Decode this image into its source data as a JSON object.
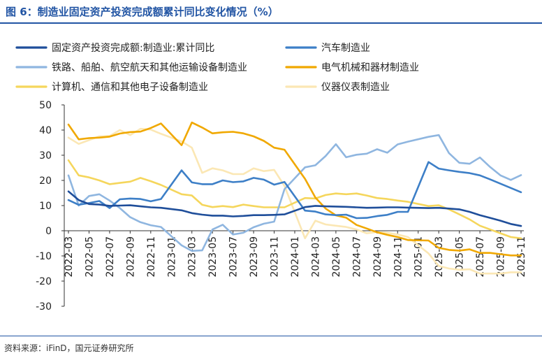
{
  "figure_title": "图 6：制造业固定资产投资完成额累计同比变化情况（%）",
  "source": "资料来源：iFinD，国元证券研究所",
  "chart_data": {
    "type": "line",
    "x": [
      "2022-03",
      "2022-04",
      "2022-05",
      "2022-06",
      "2022-07",
      "2022-08",
      "2022-09",
      "2022-10",
      "2022-11",
      "2022-12",
      "2023-01",
      "2023-02",
      "2023-03",
      "2023-04",
      "2023-05",
      "2023-06",
      "2023-07",
      "2023-08",
      "2023-09",
      "2023-10",
      "2023-11",
      "2023-12",
      "2024-01",
      "2024-02",
      "2024-03",
      "2024-04",
      "2024-05",
      "2024-06",
      "2024-07",
      "2024-08",
      "2024-09",
      "2024-10",
      "2024-11",
      "2024-12",
      "2025-01",
      "2025-02",
      "2025-03",
      "2025-04",
      "2025-05",
      "2025-06",
      "2025-07",
      "2025-08",
      "2025-09",
      "2025-10",
      "2025-11"
    ],
    "x_tick_labels": [
      "2022-03",
      "2022-05",
      "2022-07",
      "2022-09",
      "2022-11",
      "2023-01",
      "2023-03",
      "2023-05",
      "2023-07",
      "2023-09",
      "2023-11",
      "2024-01",
      "2024-03",
      "2024-05",
      "2024-07",
      "2024-09",
      "2024-11",
      "2025-01",
      "2025-03",
      "2025-05",
      "2025-07",
      "2025-09",
      "2025-11"
    ],
    "ylim": [
      -30,
      50
    ],
    "y_ticks": [
      50,
      40,
      30,
      20,
      10,
      0,
      -10,
      -20,
      -30
    ],
    "legend_position": "top",
    "series": [
      {
        "name": "固定资产投资完成额:制造业:累计同比",
        "color": "#1f4e9a",
        "values": [
          15.6,
          12.2,
          10.6,
          10.4,
          9.9,
          10.0,
          10.1,
          9.7,
          9.3,
          9.1,
          null,
          8.1,
          7.0,
          6.4,
          6.0,
          6.0,
          5.7,
          5.9,
          6.2,
          6.2,
          6.3,
          6.5,
          null,
          9.4,
          9.9,
          9.7,
          9.6,
          9.5,
          9.3,
          9.1,
          9.2,
          9.3,
          9.3,
          9.2,
          null,
          9.0,
          9.1,
          8.8,
          8.5,
          7.5,
          6.2,
          5.1,
          4.0,
          2.7,
          1.9
        ]
      },
      {
        "name": "汽车制造业",
        "color": "#3d7fc7",
        "values": [
          12.2,
          10.3,
          11.0,
          11.8,
          9.0,
          12.5,
          12.8,
          12.6,
          11.7,
          12.6,
          null,
          24.0,
          19.2,
          18.5,
          18.5,
          20.0,
          19.3,
          19.6,
          21.0,
          20.3,
          18.3,
          19.4,
          null,
          8.0,
          7.6,
          6.5,
          6.2,
          6.4,
          5.0,
          5.1,
          5.8,
          6.3,
          7.5,
          7.5,
          null,
          27.3,
          24.7,
          24.0,
          23.4,
          22.9,
          22.0,
          20.4,
          18.7,
          17.0,
          15.3
        ]
      },
      {
        "name": "铁路、船舶、航空航天和其他运输设备制造业",
        "color": "#8fb6e0",
        "values": [
          22.0,
          10.0,
          13.8,
          14.5,
          12.0,
          9.0,
          5.4,
          3.4,
          2.2,
          1.5,
          null,
          -5.8,
          -8.0,
          -7.8,
          0.5,
          2.4,
          -1.5,
          -0.8,
          1.4,
          2.8,
          3.6,
          16.5,
          null,
          25.2,
          26.0,
          29.7,
          34.4,
          29.2,
          30.2,
          30.6,
          32.4,
          31.0,
          34.3,
          35.4,
          null,
          37.3,
          38.0,
          30.8,
          27.0,
          26.6,
          29.1,
          25.3,
          22.0,
          20.2,
          22.1
        ]
      },
      {
        "name": "电气机械和器材制造业",
        "color": "#f0a800",
        "values": [
          42.2,
          36.3,
          36.8,
          37.0,
          37.4,
          38.6,
          39.2,
          39.4,
          40.8,
          42.6,
          null,
          34.0,
          43.0,
          41.0,
          38.7,
          39.1,
          39.3,
          38.7,
          37.5,
          35.7,
          33.0,
          32.2,
          null,
          20.6,
          13.2,
          8.8,
          6.1,
          5.2,
          2.3,
          0.9,
          -0.6,
          -1.6,
          -2.5,
          -3.7,
          null,
          -3.9,
          -6.8,
          -7.6,
          -7.9,
          -7.4,
          -8.8,
          -8.8,
          -9.3,
          -9.8,
          -9.8
        ]
      },
      {
        "name": "计算机、通信和其他电子设备制造业",
        "color": "#f5d65c",
        "values": [
          28.0,
          22.0,
          21.2,
          20.0,
          18.5,
          19.0,
          19.5,
          21.0,
          19.7,
          18.2,
          null,
          14.5,
          14.0,
          10.3,
          9.4,
          9.8,
          9.4,
          10.4,
          9.8,
          9.3,
          9.3,
          9.3,
          null,
          13.0,
          12.8,
          14.2,
          14.8,
          14.5,
          14.8,
          14.0,
          13.0,
          12.6,
          12.0,
          11.5,
          null,
          9.8,
          10.1,
          8.5,
          6.5,
          4.5,
          2.0,
          0.5,
          -1.0,
          -2.5,
          -3.0
        ]
      },
      {
        "name": "仪器仪表制造业",
        "color": "#fbe7b4",
        "values": [
          37.0,
          34.5,
          36.0,
          37.5,
          37.6,
          40.0,
          38.0,
          40.5,
          40.2,
          38.5,
          null,
          35.5,
          33.0,
          23.0,
          24.8,
          24.0,
          22.5,
          22.5,
          24.8,
          23.7,
          24.2,
          17.8,
          null,
          -3.0,
          4.0,
          2.5,
          2.0,
          1.5,
          0.5,
          -1.0,
          -0.5,
          -0.8,
          -1.5,
          -2.5,
          null,
          -9.0,
          -14.0,
          -15.0,
          -15.5,
          -15.3,
          -17.0,
          -17.0,
          -17.0,
          -16.5,
          -16.5
        ]
      }
    ]
  }
}
